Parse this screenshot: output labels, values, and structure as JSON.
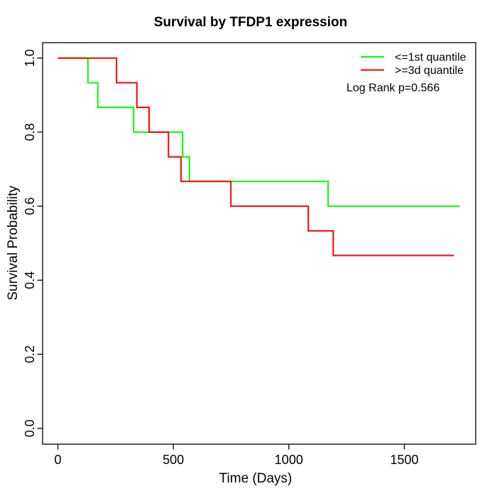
{
  "title": "Survival by TFDP1 expression",
  "axes": {
    "x": {
      "label": "Time (Days)",
      "ticks": [
        {
          "value": 0,
          "label": "0"
        },
        {
          "value": 500,
          "label": "500"
        },
        {
          "value": 1000,
          "label": "1000"
        },
        {
          "value": 1500,
          "label": "1500"
        }
      ]
    },
    "y": {
      "label": "Survival Probability",
      "ticks": [
        {
          "value": 1.0,
          "label": "1.0"
        },
        {
          "value": 0.8,
          "label": "0.8"
        },
        {
          "value": 0.6,
          "label": "0.6"
        },
        {
          "value": 0.4,
          "label": "0.4"
        },
        {
          "value": 0.2,
          "label": "0.2"
        },
        {
          "value": 0.0,
          "label": "0.0"
        }
      ]
    }
  },
  "legend": {
    "items": [
      {
        "label": "<=1st quantile",
        "color": "#00FF00"
      },
      {
        "label": ">=3d quantile",
        "color": "#FF0000"
      }
    ],
    "annotation": "Log Rank p=0.566"
  },
  "chart_data": {
    "type": "line",
    "subtype": "kaplan-meier-step",
    "title": "Survival by TFDP1 expression",
    "xlabel": "Time (Days)",
    "ylabel": "Survival Probability",
    "xlim": [
      -60,
      1810
    ],
    "ylim": [
      -0.04,
      1.04
    ],
    "grid": false,
    "legend_position": "top-right",
    "annotation": "Log Rank p=0.566",
    "series": [
      {
        "name": "<=1st quantile",
        "color": "#00FF00",
        "group_size": 15,
        "step_points": [
          [
            0,
            1.0
          ],
          [
            130,
            0.9333
          ],
          [
            173,
            0.8667
          ],
          [
            328,
            0.8
          ],
          [
            540,
            0.7333
          ],
          [
            570,
            0.6667
          ],
          [
            1170,
            0.6
          ],
          [
            1740,
            0.6
          ]
        ]
      },
      {
        "name": ">=3d quantile",
        "color": "#FF0000",
        "group_size": 15,
        "step_points": [
          [
            0,
            1.0
          ],
          [
            254,
            0.9333
          ],
          [
            342,
            0.8667
          ],
          [
            395,
            0.8
          ],
          [
            479,
            0.7333
          ],
          [
            533,
            0.6667
          ],
          [
            749,
            0.6
          ],
          [
            1084,
            0.5333
          ],
          [
            1192,
            0.4667
          ],
          [
            1715,
            0.4667
          ]
        ]
      }
    ]
  }
}
